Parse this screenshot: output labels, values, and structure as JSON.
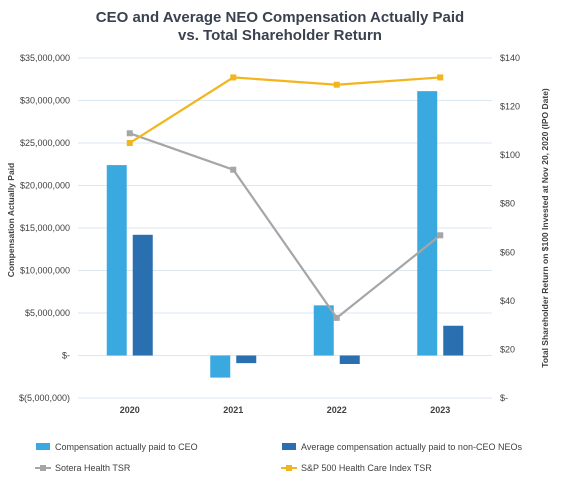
{
  "chart_data": {
    "type": "bar",
    "title": "CEO and Average NEO Compensation Actually Paid",
    "subtitle": "vs. Total Shareholder Return",
    "categories": [
      "2020",
      "2021",
      "2022",
      "2023"
    ],
    "ylabel": "Compensation Actually Paid",
    "y2label": "Total Shareholder Return on $100 Invested at Nov 20, 2020 (IPO Date)",
    "ylim": [
      -5000000,
      35000000
    ],
    "y2lim": [
      0,
      140
    ],
    "yticks": [
      "$35,000,000",
      "$30,000,000",
      "$25,000,000",
      "$20,000,000",
      "$15,000,000",
      "$10,000,000",
      "$5,000,000",
      "$-",
      "$(5,000,000)"
    ],
    "y2ticks": [
      "$140",
      "$120",
      "$100",
      "$80",
      "$60",
      "$40",
      "$20",
      "$-"
    ],
    "grid": true,
    "legend_position": "bottom",
    "series": [
      {
        "name": "Compensation actually paid to CEO",
        "kind": "bar",
        "axis": "left",
        "color": "#3aa9df",
        "values": [
          22400000,
          -2600000,
          5900000,
          31100000
        ]
      },
      {
        "name": "Average compensation actually paid to non-CEO NEOs",
        "kind": "bar",
        "axis": "left",
        "color": "#2a6fb0",
        "values": [
          14200000,
          -900000,
          -1000000,
          3500000
        ]
      },
      {
        "name": "Sotera Health TSR",
        "kind": "line",
        "axis": "right",
        "color": "#a6a6a6",
        "values": [
          109,
          94,
          33,
          67
        ]
      },
      {
        "name": "S&P 500 Health Care Index TSR",
        "kind": "line",
        "axis": "right",
        "color": "#f2b51e",
        "values": [
          105,
          132,
          129,
          132
        ]
      }
    ]
  }
}
